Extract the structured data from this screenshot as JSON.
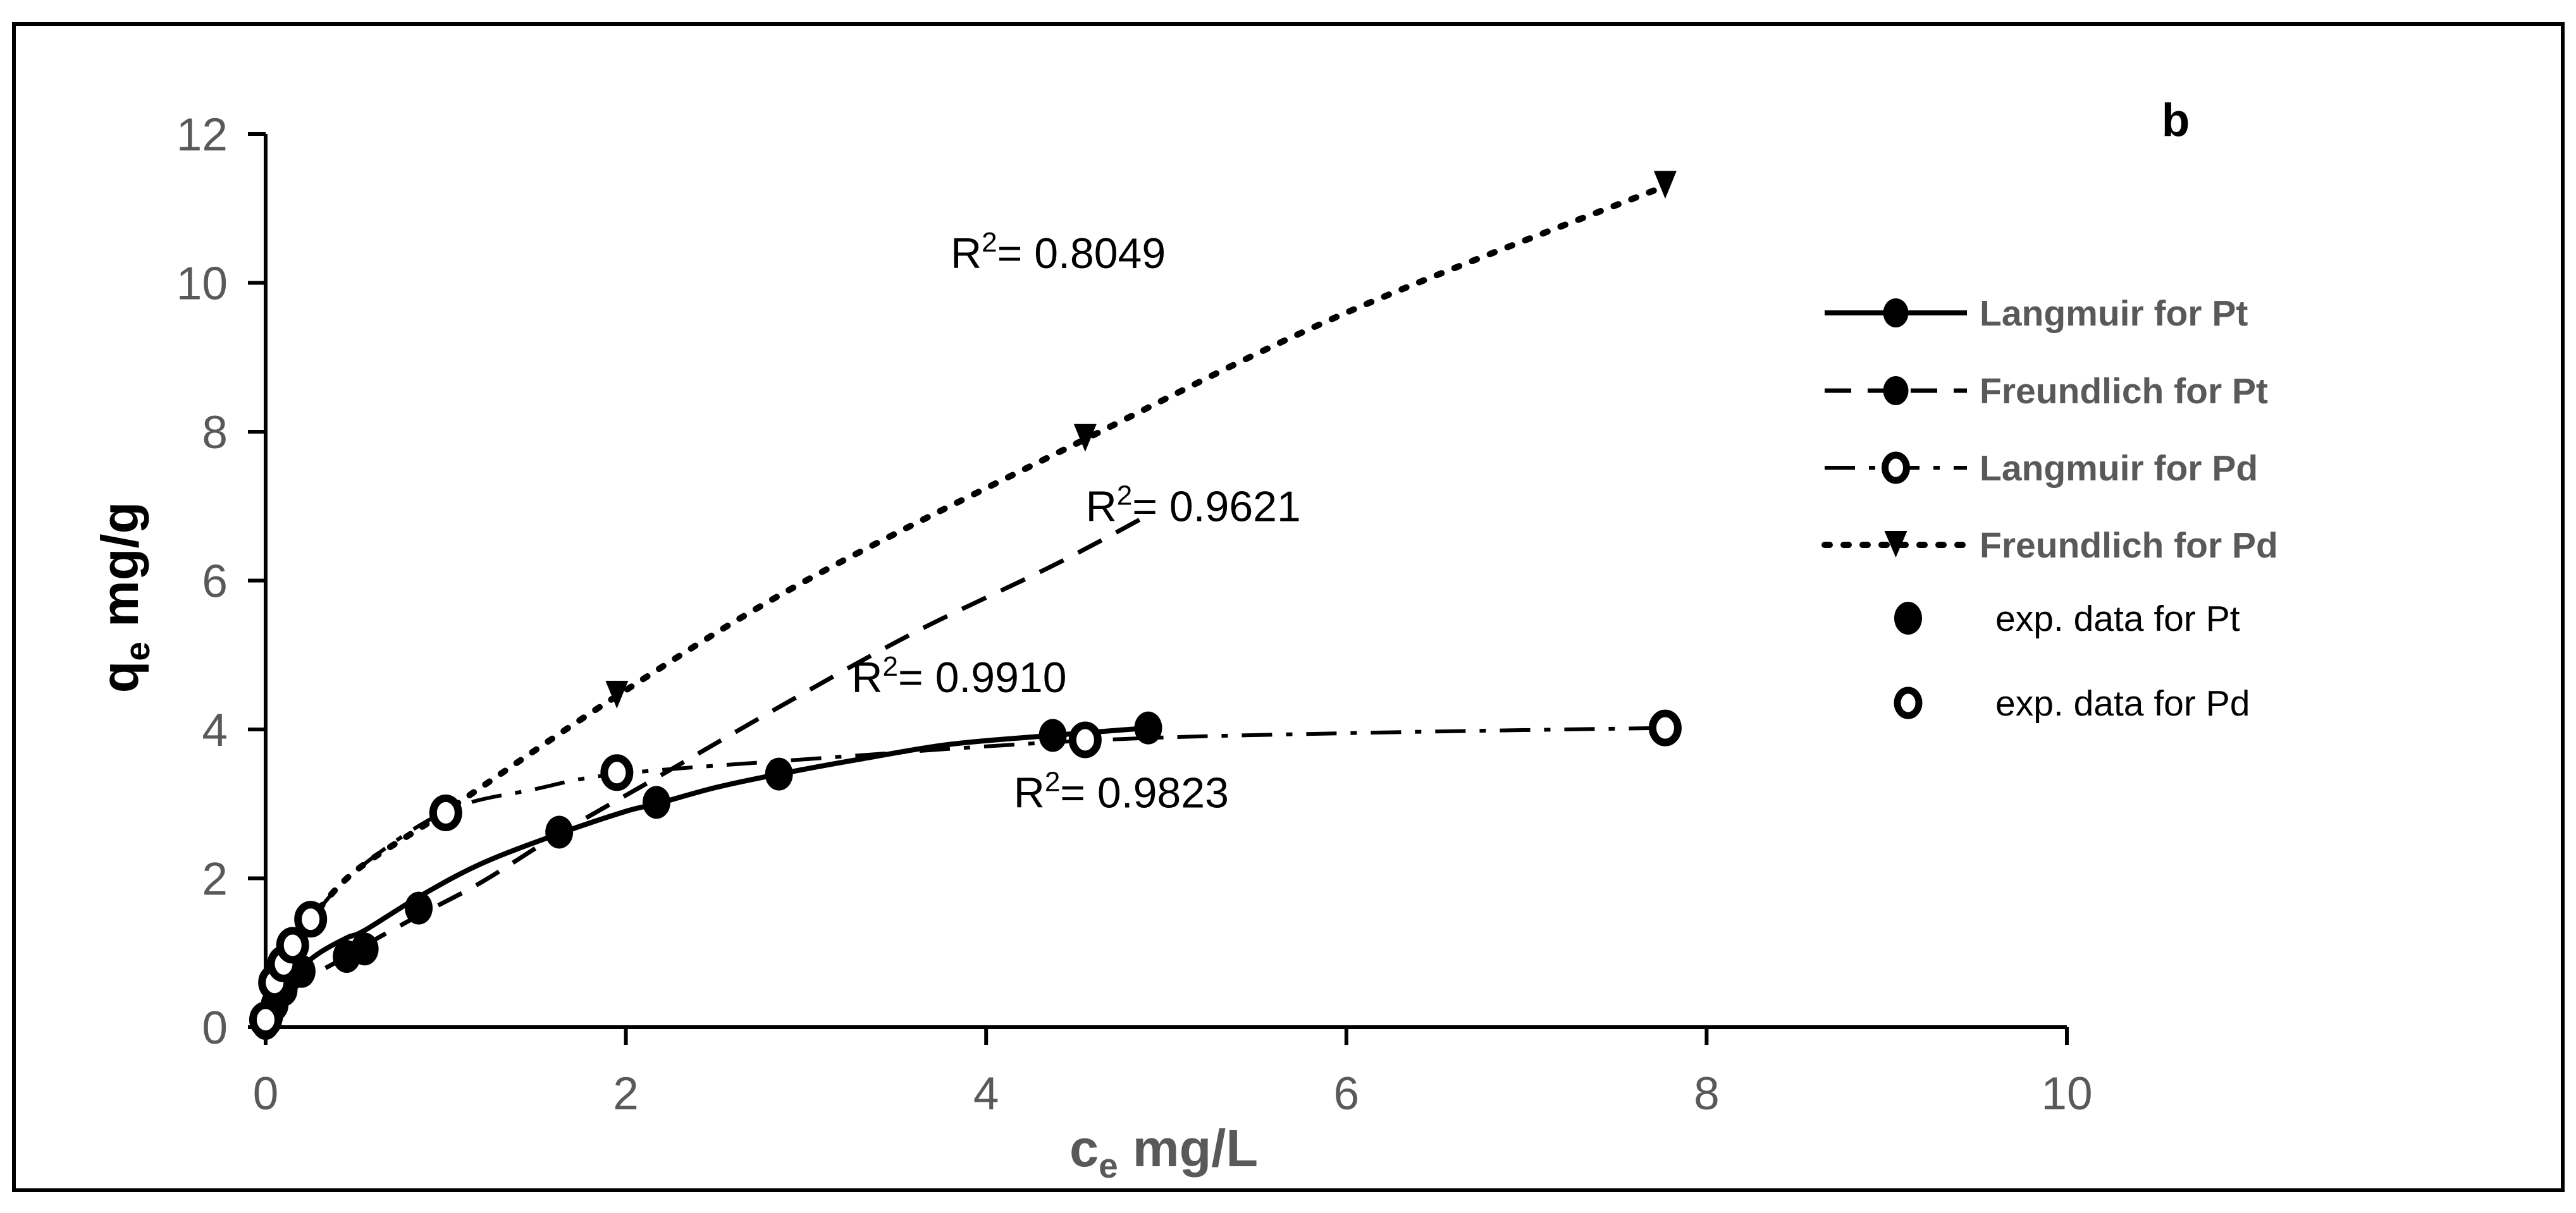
{
  "chart_data": {
    "type": "scatter",
    "panel_label": "b",
    "xlabel_main": "c",
    "xlabel_sub": "e",
    "xlabel_unit": " mg/L",
    "ylabel_main": "q",
    "ylabel_sub": "e",
    "ylabel_unit": " mg/g",
    "xlim": [
      0,
      10
    ],
    "ylim": [
      0,
      12
    ],
    "x_ticks": [
      0,
      2,
      4,
      6,
      8,
      10
    ],
    "y_ticks": [
      0,
      2,
      4,
      6,
      8,
      10,
      12
    ],
    "grid": false,
    "legend_position": "right",
    "series": [
      {
        "name": "Langmuir for Pt",
        "style": "solid",
        "x": [
          0,
          0.02,
          0.05,
          0.1,
          0.2,
          0.3,
          0.45,
          0.55,
          0.85,
          1.2,
          1.63,
          2.0,
          2.17,
          2.5,
          2.85,
          3.3,
          3.8,
          4.37,
          4.9
        ],
        "y": [
          0,
          0.12,
          0.28,
          0.5,
          0.8,
          1.0,
          1.2,
          1.3,
          1.75,
          2.2,
          2.6,
          2.9,
          3.0,
          3.22,
          3.4,
          3.6,
          3.8,
          3.92,
          4.02
        ]
      },
      {
        "name": "Freundlich for Pt",
        "style": "dashed",
        "x": [
          0,
          0.02,
          0.05,
          0.1,
          0.2,
          0.3,
          0.45,
          0.55,
          0.85,
          1.2,
          1.63,
          2.17,
          2.85,
          3.6,
          4.37,
          4.9
        ],
        "y": [
          0,
          0.1,
          0.22,
          0.38,
          0.6,
          0.75,
          0.95,
          1.1,
          1.5,
          1.95,
          2.6,
          3.35,
          4.3,
          5.3,
          6.2,
          6.88
        ]
      },
      {
        "name": "Langmuir for Pd",
        "style": "dash-dot",
        "x": [
          0,
          0.02,
          0.05,
          0.1,
          0.15,
          0.25,
          0.5,
          1.0,
          1.5,
          1.95,
          3.0,
          4.55,
          6.0,
          7.77
        ],
        "y": [
          0,
          0.3,
          0.7,
          1.0,
          1.2,
          1.45,
          2.1,
          2.9,
          3.2,
          3.4,
          3.6,
          3.85,
          3.95,
          4.02
        ]
      },
      {
        "name": "Freundlich for Pd",
        "style": "dotted",
        "x": [
          0,
          0.02,
          0.05,
          0.1,
          0.15,
          0.25,
          0.5,
          1.0,
          1.95,
          3.0,
          4.55,
          6.0,
          7.77
        ],
        "y": [
          0,
          0.3,
          0.6,
          0.95,
          1.15,
          1.45,
          2.1,
          2.9,
          4.45,
          6.0,
          7.9,
          9.6,
          11.3
        ]
      },
      {
        "name": "exp. data for Pt",
        "style": "marker-filled",
        "x": [
          0,
          0.02,
          0.05,
          0.1,
          0.2,
          0.45,
          0.55,
          0.85,
          1.63,
          2.17,
          2.85,
          4.37,
          4.9
        ],
        "y": [
          0.05,
          0.15,
          0.3,
          0.5,
          0.75,
          0.95,
          1.05,
          1.6,
          2.62,
          3.02,
          3.4,
          3.92,
          4.02
        ]
      },
      {
        "name": "exp. data for Pd",
        "style": "marker-open",
        "x": [
          0,
          0.05,
          0.1,
          0.15,
          0.25,
          1.0,
          1.95,
          4.55,
          7.77
        ],
        "y": [
          0.1,
          0.6,
          0.85,
          1.1,
          1.45,
          2.88,
          3.42,
          3.86,
          4.02
        ]
      }
    ],
    "annotations": [
      {
        "text": "R",
        "sup": "2",
        "value": "= 0.8049",
        "x": 4.4,
        "y": 10.2
      },
      {
        "text": "R",
        "sup": "2",
        "value": "= 0.9621",
        "x": 5.15,
        "y": 6.8
      },
      {
        "text": "R",
        "sup": "2",
        "value": "= 0.9910",
        "x": 3.85,
        "y": 4.5
      },
      {
        "text": "R",
        "sup": "2",
        "value": "= 0.9823",
        "x": 4.75,
        "y": 2.95
      }
    ],
    "colors": {
      "ink": "#000000",
      "tick_text": "#595959",
      "legend_text": "#595959"
    }
  }
}
